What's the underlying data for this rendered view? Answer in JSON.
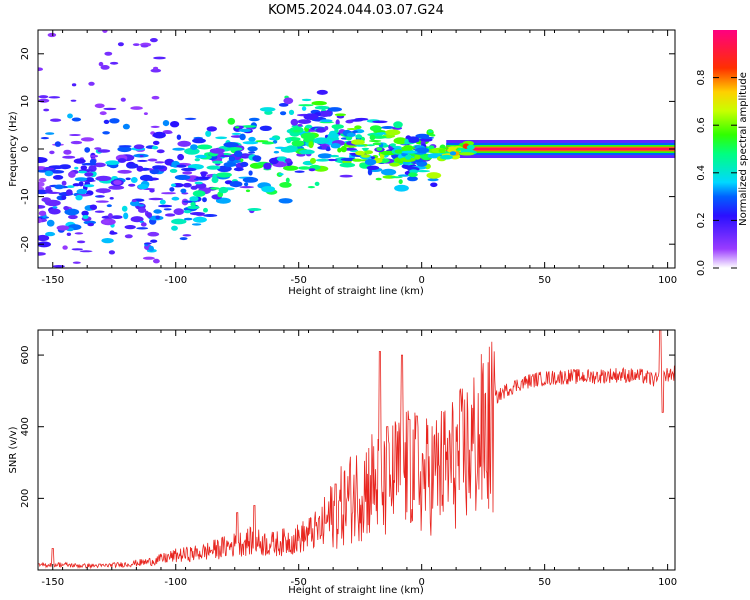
{
  "figure": {
    "title": "KOM5.2024.044.03.07.G24"
  },
  "chart_data": [
    {
      "type": "heatmap",
      "xlabel": "Height of straight line (km)",
      "ylabel": "Frequency (Hz)",
      "xlim": [
        -156,
        103
      ],
      "ylim": [
        -25,
        25
      ],
      "x_ticks": [
        -150,
        -100,
        -50,
        0,
        50,
        100
      ],
      "y_ticks": [
        -20,
        -10,
        0,
        10,
        20
      ],
      "colorbar": {
        "label": "Normalized spectral amplitude",
        "ticks": [
          0.0,
          0.2,
          0.4,
          0.6,
          0.8
        ],
        "range": [
          0,
          1
        ]
      },
      "ridge": [
        {
          "x": -152,
          "y": -8,
          "a": 0.35
        },
        {
          "x": -140,
          "y": -9,
          "a": 0.4
        },
        {
          "x": -125,
          "y": -8,
          "a": 0.4
        },
        {
          "x": -110,
          "y": -7,
          "a": 0.4
        },
        {
          "x": -95,
          "y": -5,
          "a": 0.45
        },
        {
          "x": -85,
          "y": -4,
          "a": 0.5
        },
        {
          "x": -75,
          "y": -2,
          "a": 0.55
        },
        {
          "x": -65,
          "y": -1,
          "a": 0.55
        },
        {
          "x": -55,
          "y": 0,
          "a": 0.55
        },
        {
          "x": -45,
          "y": 2,
          "a": 0.6
        },
        {
          "x": -35,
          "y": 2,
          "a": 0.6
        },
        {
          "x": -25,
          "y": 1,
          "a": 0.65
        },
        {
          "x": -15,
          "y": 0,
          "a": 0.65
        },
        {
          "x": -5,
          "y": -1,
          "a": 0.6
        },
        {
          "x": 0,
          "y": -1,
          "a": 0.6
        },
        {
          "x": 10,
          "y": -1,
          "a": 0.75
        },
        {
          "x": 20,
          "y": 0,
          "a": 0.9
        },
        {
          "x": 40,
          "y": 0,
          "a": 0.95
        },
        {
          "x": 60,
          "y": 0,
          "a": 0.95
        },
        {
          "x": 80,
          "y": 0,
          "a": 0.95
        },
        {
          "x": 103,
          "y": 0,
          "a": 0.95
        }
      ]
    },
    {
      "type": "line",
      "xlabel": "Height of straight line (km)",
      "ylabel": "SNR (v/v)",
      "xlim": [
        -156,
        103
      ],
      "ylim": [
        0,
        670
      ],
      "x_ticks": [
        -150,
        -100,
        -50,
        0,
        50,
        100
      ],
      "y_ticks": [
        200,
        400,
        600
      ],
      "series": [
        {
          "color": "#e8251f",
          "points": [
            [
              -156,
              15
            ],
            [
              -150,
              20
            ],
            [
              -145,
              18
            ],
            [
              -140,
              15
            ],
            [
              -130,
              15
            ],
            [
              -120,
              20
            ],
            [
              -110,
              30
            ],
            [
              -100,
              50
            ],
            [
              -90,
              60
            ],
            [
              -80,
              80
            ],
            [
              -70,
              100
            ],
            [
              -60,
              90
            ],
            [
              -50,
              110
            ],
            [
              -40,
              150
            ],
            [
              -35,
              190
            ],
            [
              -30,
              230
            ],
            [
              -25,
              260
            ],
            [
              -20,
              290
            ],
            [
              -15,
              260
            ],
            [
              -10,
              320
            ],
            [
              -5,
              340
            ],
            [
              0,
              300
            ],
            [
              5,
              320
            ],
            [
              10,
              340
            ],
            [
              15,
              360
            ],
            [
              20,
              400
            ],
            [
              25,
              440
            ],
            [
              30,
              480
            ],
            [
              35,
              505
            ],
            [
              40,
              520
            ],
            [
              45,
              530
            ],
            [
              50,
              535
            ],
            [
              60,
              540
            ],
            [
              70,
              540
            ],
            [
              80,
              545
            ],
            [
              90,
              540
            ],
            [
              95,
              530
            ],
            [
              100,
              545
            ],
            [
              103,
              550
            ]
          ],
          "spikes": [
            [
              -150,
              60
            ],
            [
              -75,
              160
            ],
            [
              -68,
              180
            ],
            [
              -35,
              240
            ],
            [
              -17,
              610
            ],
            [
              -14,
              400
            ],
            [
              -8,
              600
            ],
            [
              -5,
              420
            ],
            [
              -2,
              430
            ],
            [
              97,
              670
            ],
            [
              98,
              440
            ]
          ]
        }
      ]
    }
  ]
}
